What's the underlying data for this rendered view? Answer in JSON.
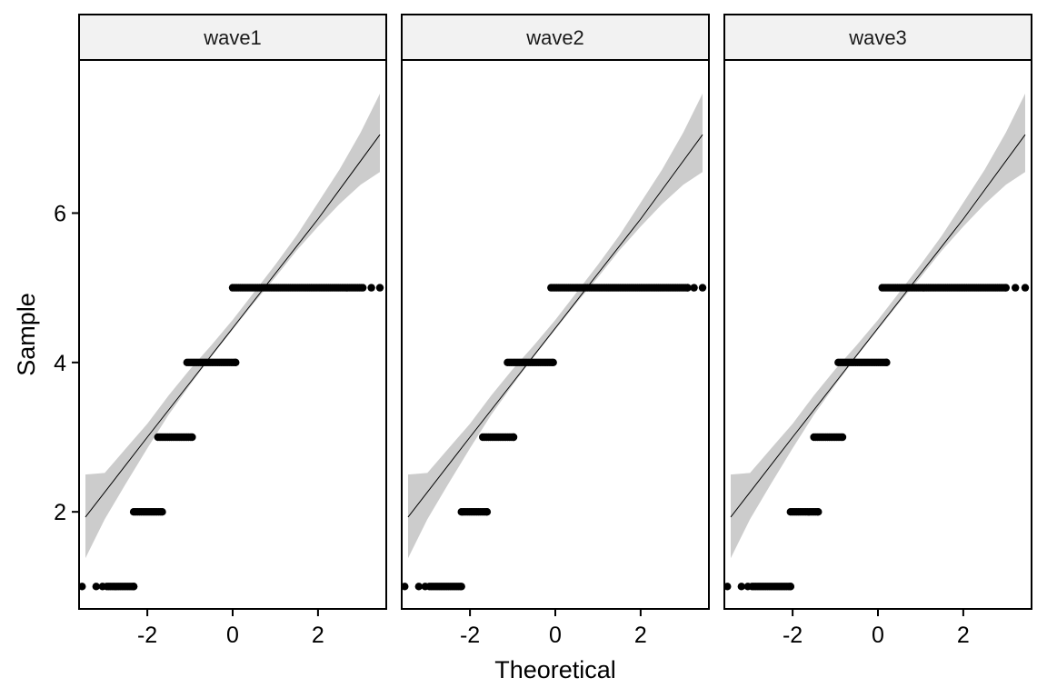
{
  "chart_data": {
    "type": "scatter",
    "subtype": "qq-plot faceted",
    "xlabel": "Theoretical",
    "ylabel": "Sample",
    "xlim": [
      -3.6,
      3.6
    ],
    "ylim": [
      0.7,
      8.05
    ],
    "x_ticks": [
      -2,
      0,
      2
    ],
    "x_tick_labels": [
      "-2",
      "0",
      "2"
    ],
    "y_ticks": [
      2,
      4,
      6
    ],
    "y_tick_labels": [
      "2",
      "4",
      "6"
    ],
    "grid": false,
    "colors": {
      "points": "#000000",
      "line": "#000000",
      "band": "#cccccc",
      "strip_bg": "#f2f2f2",
      "frame": "#000000"
    },
    "reference_line": {
      "x": [
        -3.45,
        -2.0,
        -1.0,
        0.0,
        1.0,
        2.0,
        3.45
      ],
      "y": [
        1.93,
        3.0,
        3.73,
        4.46,
        5.19,
        5.92,
        7.05
      ]
    },
    "confidence_band": {
      "x": [
        -3.45,
        -3.0,
        -2.5,
        -2.0,
        -1.5,
        -1.0,
        -0.5,
        0.0,
        0.5,
        1.0,
        1.5,
        2.0,
        2.5,
        3.0,
        3.45
      ],
      "lower": [
        1.38,
        1.9,
        2.38,
        2.85,
        3.3,
        3.7,
        4.08,
        4.44,
        4.8,
        5.14,
        5.5,
        5.82,
        6.12,
        6.38,
        6.55
      ],
      "upper": [
        2.5,
        2.52,
        2.85,
        3.18,
        3.56,
        3.91,
        4.23,
        4.57,
        4.94,
        5.31,
        5.7,
        6.14,
        6.58,
        7.08,
        7.6
      ]
    },
    "panels": [
      {
        "name": "wave1",
        "segments": [
          {
            "y": 1,
            "x_start": -2.95,
            "x_end": -2.32,
            "outliers": [
              -3.53,
              -3.2,
              -3.05
            ]
          },
          {
            "y": 2,
            "x_start": -2.32,
            "x_end": -1.65,
            "outliers": []
          },
          {
            "y": 3,
            "x_start": -1.75,
            "x_end": -0.95,
            "outliers": []
          },
          {
            "y": 4,
            "x_start": -1.07,
            "x_end": 0.07,
            "outliers": []
          },
          {
            "y": 5,
            "x_start": 0.0,
            "x_end": 3.05,
            "outliers": [
              3.25,
              3.45
            ]
          }
        ]
      },
      {
        "name": "wave2",
        "segments": [
          {
            "y": 1,
            "x_start": -2.95,
            "x_end": -2.2,
            "outliers": [
              -3.53,
              -3.2,
              -3.05
            ]
          },
          {
            "y": 2,
            "x_start": -2.2,
            "x_end": -1.6,
            "outliers": []
          },
          {
            "y": 3,
            "x_start": -1.7,
            "x_end": -0.98,
            "outliers": []
          },
          {
            "y": 4,
            "x_start": -1.12,
            "x_end": -0.05,
            "outliers": []
          },
          {
            "y": 5,
            "x_start": -0.1,
            "x_end": 3.1,
            "outliers": [
              3.25,
              3.45
            ]
          }
        ]
      },
      {
        "name": "wave3",
        "segments": [
          {
            "y": 1,
            "x_start": -2.95,
            "x_end": -2.05,
            "outliers": [
              -3.53,
              -3.2,
              -3.05
            ]
          },
          {
            "y": 2,
            "x_start": -2.05,
            "x_end": -1.4,
            "outliers": []
          },
          {
            "y": 3,
            "x_start": -1.5,
            "x_end": -0.83,
            "outliers": []
          },
          {
            "y": 4,
            "x_start": -0.93,
            "x_end": 0.2,
            "outliers": []
          },
          {
            "y": 5,
            "x_start": 0.1,
            "x_end": 3.0,
            "outliers": [
              3.22,
              3.45
            ]
          }
        ]
      }
    ]
  }
}
